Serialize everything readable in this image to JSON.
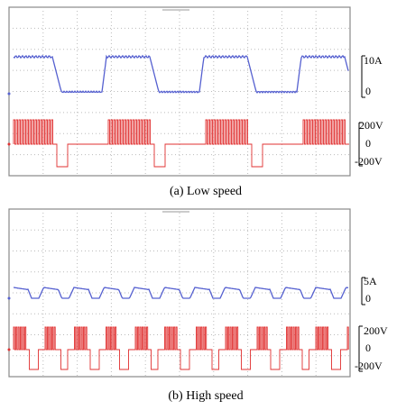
{
  "panels": [
    {
      "caption": "(a)  Low speed",
      "current_labels": [
        "10A",
        "0"
      ],
      "voltage_labels": [
        "200V",
        "0",
        "-200V"
      ]
    },
    {
      "caption": "(b)  High speed",
      "current_labels": [
        "5A",
        "0"
      ],
      "voltage_labels": [
        "200V",
        "0",
        "-200V"
      ]
    }
  ]
}
